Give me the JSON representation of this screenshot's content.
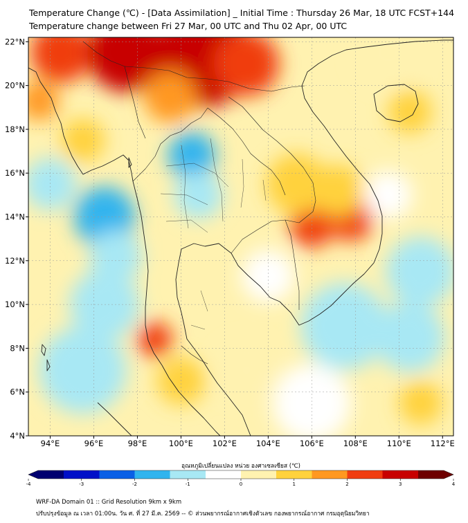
{
  "title_line1": "Temperature Change (℃) - [Data Assimilation] _ Initial Time : Thursday 26 Mar, 18 UTC FCST+144",
  "title_line2": "Temperature change between Fri 27 Mar, 00 UTC and Thu 02 Apr, 00 UTC",
  "map": {
    "lon_range": [
      93,
      112.5
    ],
    "lat_range": [
      4,
      22.2
    ],
    "x_ticks": [
      {
        "lon": 94,
        "label": "94°E"
      },
      {
        "lon": 96,
        "label": "96°E"
      },
      {
        "lon": 98,
        "label": "98°E"
      },
      {
        "lon": 100,
        "label": "100°E"
      },
      {
        "lon": 102,
        "label": "102°E"
      },
      {
        "lon": 104,
        "label": "104°E"
      },
      {
        "lon": 106,
        "label": "106°E"
      },
      {
        "lon": 108,
        "label": "108°E"
      },
      {
        "lon": 110,
        "label": "110°E"
      },
      {
        "lon": 112,
        "label": "112°E"
      }
    ],
    "y_ticks": [
      {
        "lat": 22,
        "label": "22°N"
      },
      {
        "lat": 20,
        "label": "20°N"
      },
      {
        "lat": 18,
        "label": "18°N"
      },
      {
        "lat": 16,
        "label": "16°N"
      },
      {
        "lat": 14,
        "label": "14°N"
      },
      {
        "lat": 12,
        "label": "12°N"
      },
      {
        "lat": 10,
        "label": "10°N"
      },
      {
        "lat": 8,
        "label": "8°N"
      },
      {
        "lat": 6,
        "label": "6°N"
      },
      {
        "lat": 4,
        "label": "4°N"
      }
    ],
    "field_background_value": 0.3,
    "anomalies": [
      {
        "lon": 94.5,
        "lat": 21.5,
        "value": 2.0,
        "radius": 1.4
      },
      {
        "lon": 97.5,
        "lat": 21.5,
        "value": 2.7,
        "radius": 1.8
      },
      {
        "lon": 101.0,
        "lat": 21.3,
        "value": 2.9,
        "radius": 2.3
      },
      {
        "lon": 103.0,
        "lat": 21.0,
        "value": 2.0,
        "radius": 1.5
      },
      {
        "lon": 99.5,
        "lat": 19.5,
        "value": 1.6,
        "radius": 1.2
      },
      {
        "lon": 93.5,
        "lat": 19.3,
        "value": 1.6,
        "radius": 0.9
      },
      {
        "lon": 95.5,
        "lat": 17.5,
        "value": 0.8,
        "radius": 1.0
      },
      {
        "lon": 100.5,
        "lat": 16.8,
        "value": -2.0,
        "radius": 1.1
      },
      {
        "lon": 100.8,
        "lat": 15.0,
        "value": -0.8,
        "radius": 1.1
      },
      {
        "lon": 96.5,
        "lat": 14.0,
        "value": -1.8,
        "radius": 1.4
      },
      {
        "lon": 97.0,
        "lat": 12.2,
        "value": -1.2,
        "radius": 1.2
      },
      {
        "lon": 94.0,
        "lat": 15.5,
        "value": -1.0,
        "radius": 1.2
      },
      {
        "lon": 104.0,
        "lat": 11.3,
        "value": -0.6,
        "radius": 1.2
      },
      {
        "lon": 106.0,
        "lat": 13.6,
        "value": 2.6,
        "radius": 1.0
      },
      {
        "lon": 107.8,
        "lat": 13.9,
        "value": 2.5,
        "radius": 1.0
      },
      {
        "lon": 105.3,
        "lat": 15.5,
        "value": 1.3,
        "radius": 1.4
      },
      {
        "lon": 107.2,
        "lat": 15.2,
        "value": 1.0,
        "radius": 1.2
      },
      {
        "lon": 98.8,
        "lat": 8.4,
        "value": 2.4,
        "radius": 0.8
      },
      {
        "lon": 100.0,
        "lat": 6.5,
        "value": 1.0,
        "radius": 1.1
      },
      {
        "lon": 103.0,
        "lat": 7.0,
        "value": 0.6,
        "radius": 1.3
      },
      {
        "lon": 95.5,
        "lat": 7.0,
        "value": -1.0,
        "radius": 2.0
      },
      {
        "lon": 96.5,
        "lat": 10.0,
        "value": -0.8,
        "radius": 1.6
      },
      {
        "lon": 107.5,
        "lat": 9.0,
        "value": -0.8,
        "radius": 2.0
      },
      {
        "lon": 111.0,
        "lat": 11.5,
        "value": -1.2,
        "radius": 1.6
      },
      {
        "lon": 110.5,
        "lat": 8.5,
        "value": -0.8,
        "radius": 1.6
      },
      {
        "lon": 109.5,
        "lat": 15.0,
        "value": -0.5,
        "radius": 1.1
      },
      {
        "lon": 110.5,
        "lat": 18.8,
        "value": 1.2,
        "radius": 1.0
      },
      {
        "lon": 106.0,
        "lat": 5.5,
        "value": -0.6,
        "radius": 1.8
      },
      {
        "lon": 111.0,
        "lat": 5.5,
        "value": 1.0,
        "radius": 1.0
      },
      {
        "lon": 109.5,
        "lat": 21.5,
        "value": 0.2,
        "radius": 1.5
      }
    ]
  },
  "colorbar": {
    "title": "อุณหภูมิเปลี่ยนแปลง หน่วย องศาเซลเซียส (℃)",
    "min": -4,
    "max": 4,
    "ticks": [
      "-4",
      "-3",
      "-2",
      "-1",
      "0",
      "1",
      "2",
      "3",
      "4"
    ],
    "colors": [
      "#000070",
      "#0010c8",
      "#0a60e6",
      "#30b4ee",
      "#a8e8f4",
      "#ffffff",
      "#fff2b0",
      "#ffd23c",
      "#ff9820",
      "#f03c10",
      "#c80000",
      "#6e0000"
    ]
  },
  "footer_line1": "WRF-DA Domain 01 :: Grid Resolution 9km x 9km",
  "footer_line2": "ปรับปรุงข้อมูล ณ เวลา 01:00น. วัน ศ. ที่ 27 มี.ค. 2569 -- © ส่วนพยากรณ์อากาศเชิงตัวเลข กองพยากรณ์อากาศ กรมอุตุนิยมวิทยา"
}
